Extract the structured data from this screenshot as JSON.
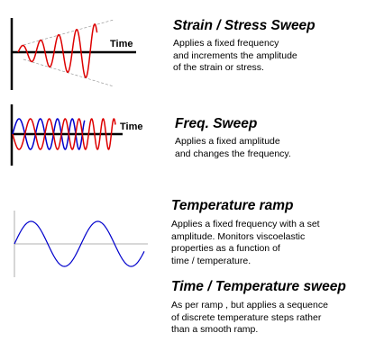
{
  "axis_label": "Time",
  "sections": {
    "strain_sweep": {
      "title": "Strain / Stress Sweep",
      "lines": [
        "Applies a fixed frequency",
        "and increments the amplitude",
        "of the strain or stress."
      ],
      "color": "#dd0000"
    },
    "freq_sweep": {
      "title": "Freq. Sweep",
      "lines": [
        "Applies a fixed amplitude",
        "and changes the frequency."
      ],
      "colors": [
        "#0000cc",
        "#dd0000"
      ]
    },
    "temp_ramp": {
      "title": "Temperature ramp",
      "lines": [
        "Applies a fixed frequency with a set",
        "amplitude. Monitors viscoelastic",
        "properties as a function of",
        "time / temperature."
      ],
      "color": "#0000cc"
    },
    "time_temp_sweep": {
      "title": "Time / Temperature sweep",
      "lines": [
        "As per ramp  , but applies a sequence",
        "of discrete temperature steps rather",
        "than a smooth ramp."
      ]
    }
  }
}
